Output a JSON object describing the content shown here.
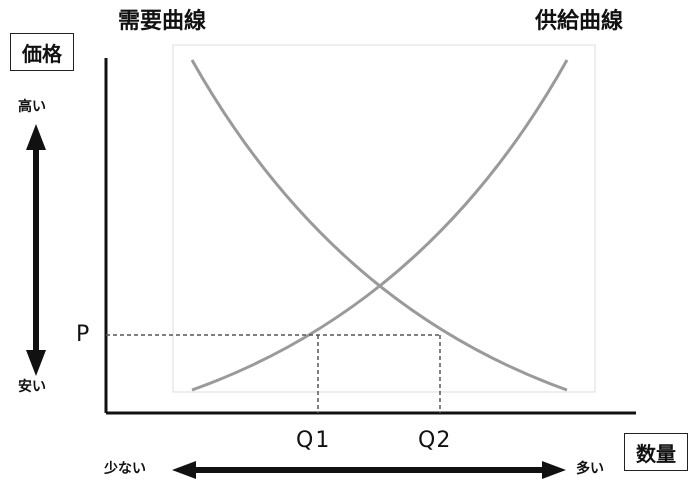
{
  "labels": {
    "demand_curve": "需要曲線",
    "supply_curve": "供給曲線",
    "price_axis": "価格",
    "quantity_axis": "数量",
    "price_high": "高い",
    "price_low": "安い",
    "quantity_low": "少ない",
    "quantity_high": "多い",
    "price_level": "P",
    "q1": "Q1",
    "q2": "Q2"
  },
  "colors": {
    "axis": "#111111",
    "curve": "#9a9a9a",
    "frame": "#dddddd",
    "guide": "#555555"
  }
}
